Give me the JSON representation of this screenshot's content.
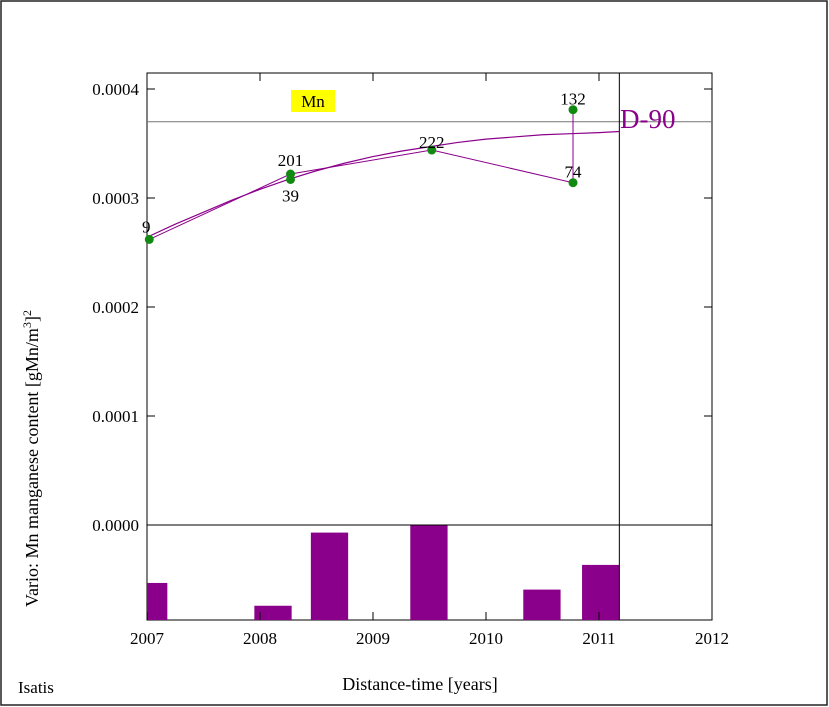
{
  "footer_text": "Isatis",
  "colors": {
    "purple": "#8B008B",
    "point": "#128A12",
    "legend_bg": "#FFFF00",
    "sill_line": "#777777"
  },
  "chart_data": {
    "type": "line",
    "title": "",
    "legend": {
      "label": "Mn",
      "placement": "top-left"
    },
    "xlabel": "Distance-time [years]",
    "ylabel": "Vario: Mn manganese content [gMn/m",
    "ylabel_sup": "3",
    "ylabel_end": "]",
    "ylabel_sup2": "2",
    "xlim": [
      2007,
      2012
    ],
    "ylim": [
      -8e-05,
      0.00042
    ],
    "x_ticks": [
      2007,
      2008,
      2009,
      2010,
      2011,
      2012
    ],
    "x_tick_labels": [
      "2007",
      "2008",
      "2009",
      "2010",
      "2011",
      "2012"
    ],
    "y_ticks": [
      0.0,
      0.0001,
      0.0002,
      0.0003,
      0.0004
    ],
    "y_tick_labels": [
      "0.0000",
      "0.0001",
      "0.0002",
      "0.0003",
      "0.0004"
    ],
    "sill": 0.00037,
    "grid": false,
    "experimental": {
      "name": "Mn",
      "points": [
        {
          "x": 2007.02,
          "y": 0.000262,
          "label": "9"
        },
        {
          "x": 2008.27,
          "y": 0.000317,
          "label": "39"
        },
        {
          "x": 2008.27,
          "y": 0.000322,
          "label": "201"
        },
        {
          "x": 2009.52,
          "y": 0.000344,
          "label": "222"
        },
        {
          "x": 2010.77,
          "y": 0.000314,
          "label": "74"
        },
        {
          "x": 2010.77,
          "y": 0.000381,
          "label": "132"
        }
      ],
      "path_order": [
        0,
        2,
        3,
        4,
        5
      ]
    },
    "model": {
      "label": "D-90",
      "x": [
        2007.0,
        2007.25,
        2007.5,
        2007.75,
        2008.0,
        2008.25,
        2008.5,
        2008.75,
        2009.0,
        2009.25,
        2009.5,
        2009.75,
        2010.0,
        2010.25,
        2010.5,
        2010.75,
        2011.0,
        2011.18
      ],
      "y": [
        0.000264,
        0.000276,
        0.000287,
        0.000298,
        0.000308,
        0.000317,
        0.000325,
        0.000332,
        0.000338,
        0.000343,
        0.000347,
        0.000351,
        0.000354,
        0.000356,
        0.000358,
        0.000359,
        0.00036,
        0.000361
      ]
    },
    "vertical_line_x": 2011.18,
    "histogram": {
      "bars": [
        {
          "x0": 2007.0,
          "x1": 2007.18,
          "value": 0.39
        },
        {
          "x0": 2007.95,
          "x1": 2008.28,
          "value": 0.15
        },
        {
          "x0": 2008.45,
          "x1": 2008.78,
          "value": 0.92
        },
        {
          "x0": 2009.33,
          "x1": 2009.66,
          "value": 1.0
        },
        {
          "x0": 2010.33,
          "x1": 2010.66,
          "value": 0.32
        },
        {
          "x0": 2010.85,
          "x1": 2011.18,
          "value": 0.58
        }
      ]
    }
  }
}
